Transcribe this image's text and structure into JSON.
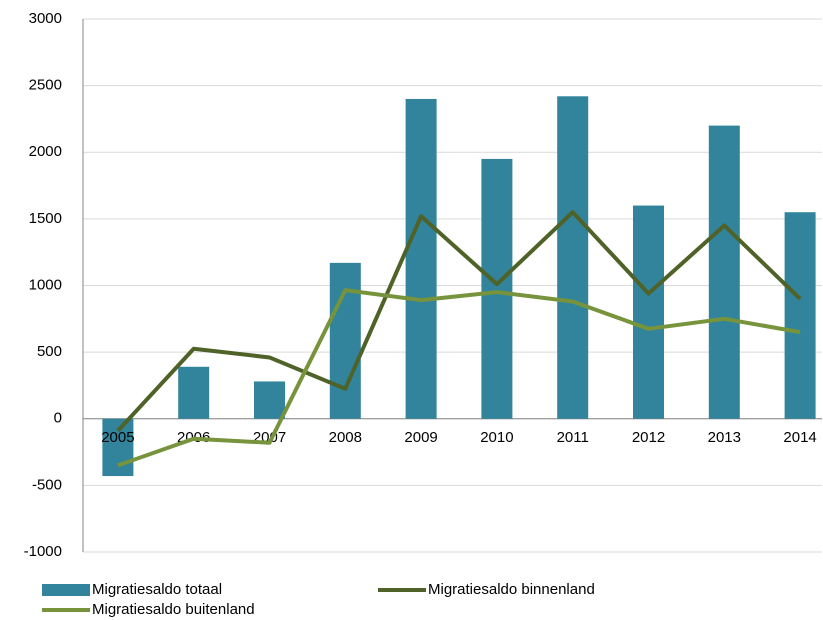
{
  "chart_data": {
    "type": "bar-line",
    "categories": [
      "2005",
      "2006",
      "2007",
      "2008",
      "2009",
      "2010",
      "2011",
      "2012",
      "2013",
      "2014"
    ],
    "series": [
      {
        "name": "Migratiesaldo totaal",
        "type": "bar",
        "color": "#31849b",
        "values": [
          -430,
          390,
          280,
          1170,
          2400,
          1950,
          2420,
          1600,
          2200,
          1550
        ]
      },
      {
        "name": "Migratiesaldo binnenland",
        "type": "line",
        "color": "#4f6228",
        "values": [
          -90,
          525,
          460,
          225,
          1520,
          1010,
          1550,
          940,
          1450,
          900
        ]
      },
      {
        "name": "Migratiesaldo buitenland",
        "type": "line",
        "color": "#77933c",
        "values": [
          -350,
          -150,
          -180,
          965,
          890,
          950,
          880,
          675,
          750,
          650
        ]
      }
    ],
    "ylim": [
      -1000,
      3000
    ],
    "yticks": [
      -1000,
      -500,
      0,
      500,
      1000,
      1500,
      2000,
      2500,
      3000
    ],
    "grid": true
  }
}
